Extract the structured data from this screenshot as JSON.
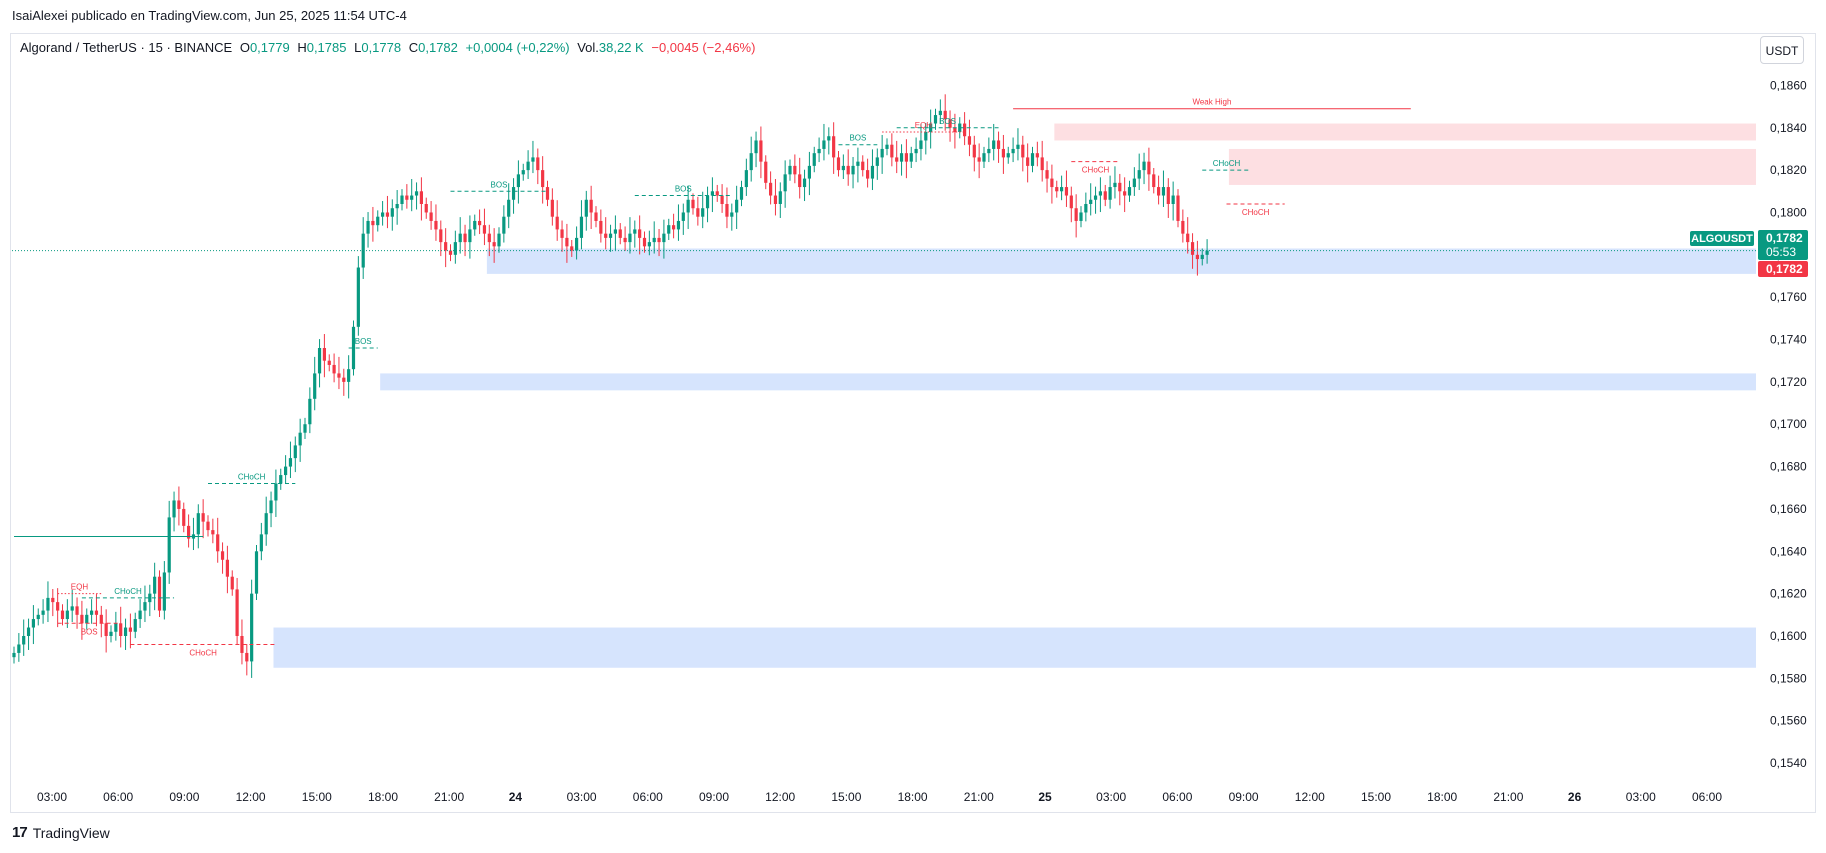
{
  "header": {
    "publisher": "IsaiAlexei publicado en TradingView.com, Jun 25, 2025 11:54 UTC-4"
  },
  "legend": {
    "symbol": "Algorand / TetherUS · 15 · BINANCE",
    "o_label": "O",
    "o_value": "0,1779",
    "h_label": "H",
    "h_value": "0,1785",
    "l_label": "L",
    "l_value": "0,1778",
    "c_label": "C",
    "c_value": "0,1782",
    "change": "+0,0004 (+0,22%)",
    "vol_label": "Vol.",
    "vol_value": "38,22 K",
    "vol_change": "−0,0045 (−2,46%)"
  },
  "currency_button": "USDT",
  "footer": {
    "brand": "TradingView"
  },
  "colors": {
    "up": "#089981",
    "down": "#f23645",
    "demand": "#d6e4fd",
    "supply": "#fddfe2"
  },
  "chart_data": {
    "type": "candlestick",
    "title": "",
    "ylim": [
      0.1532,
      0.1872
    ],
    "y_ticks": [
      "0,1540",
      "0,1560",
      "0,1580",
      "0,1600",
      "0,1620",
      "0,1640",
      "0,1660",
      "0,1680",
      "0,1700",
      "0,1720",
      "0,1740",
      "0,1760",
      "0,1780",
      "0,1800",
      "0,1820",
      "0,1840",
      "0,1860"
    ],
    "x_ticks": [
      "03:00",
      "06:00",
      "09:00",
      "12:00",
      "15:00",
      "18:00",
      "21:00",
      "24",
      "03:00",
      "06:00",
      "09:00",
      "12:00",
      "15:00",
      "18:00",
      "21:00",
      "25",
      "03:00",
      "06:00",
      "09:00",
      "12:00",
      "15:00",
      "18:00",
      "21:00",
      "26",
      "03:00",
      "06:00"
    ],
    "bold_ticks": [
      "24",
      "25",
      "26"
    ],
    "last_price": {
      "symbol": "ALGOUSDT",
      "price": "0,1782",
      "countdown": "05:53"
    },
    "series_close": [
      0.1592,
      0.1596,
      0.16,
      0.1604,
      0.1608,
      0.161,
      0.1612,
      0.1618,
      0.1616,
      0.1612,
      0.1608,
      0.1612,
      0.1614,
      0.161,
      0.1606,
      0.161,
      0.1612,
      0.161,
      0.1606,
      0.16,
      0.1602,
      0.1606,
      0.16,
      0.1604,
      0.1602,
      0.1608,
      0.1612,
      0.1616,
      0.162,
      0.1628,
      0.1612,
      0.163,
      0.1656,
      0.1664,
      0.166,
      0.1652,
      0.1646,
      0.1648,
      0.1658,
      0.1654,
      0.165,
      0.1648,
      0.164,
      0.1636,
      0.1628,
      0.1622,
      0.16,
      0.1592,
      0.1588,
      0.162,
      0.164,
      0.1648,
      0.1658,
      0.1664,
      0.1672,
      0.1676,
      0.168,
      0.1684,
      0.169,
      0.1696,
      0.17,
      0.1712,
      0.1724,
      0.1736,
      0.173,
      0.1728,
      0.1724,
      0.1722,
      0.172,
      0.1726,
      0.1746,
      0.1774,
      0.179,
      0.1796,
      0.1794,
      0.1798,
      0.18,
      0.1798,
      0.1802,
      0.1804,
      0.1808,
      0.1806,
      0.1808,
      0.181,
      0.1804,
      0.18,
      0.1796,
      0.1792,
      0.1786,
      0.1782,
      0.178,
      0.1786,
      0.179,
      0.1786,
      0.1792,
      0.1796,
      0.1794,
      0.179,
      0.1786,
      0.1784,
      0.179,
      0.1798,
      0.1806,
      0.1812,
      0.1818,
      0.182,
      0.1824,
      0.1826,
      0.182,
      0.1812,
      0.1806,
      0.1798,
      0.1792,
      0.1788,
      0.1784,
      0.1782,
      0.1788,
      0.1798,
      0.1806,
      0.18,
      0.1796,
      0.179,
      0.1788,
      0.179,
      0.1792,
      0.1788,
      0.1786,
      0.179,
      0.1792,
      0.1788,
      0.1784,
      0.1786,
      0.1788,
      0.1786,
      0.179,
      0.1794,
      0.1792,
      0.1796,
      0.18,
      0.1806,
      0.1802,
      0.1798,
      0.1802,
      0.1808,
      0.181,
      0.1808,
      0.1804,
      0.1798,
      0.18,
      0.1806,
      0.1812,
      0.182,
      0.1828,
      0.1834,
      0.1824,
      0.1814,
      0.1808,
      0.1804,
      0.181,
      0.1818,
      0.1822,
      0.1818,
      0.1812,
      0.1816,
      0.1822,
      0.1828,
      0.183,
      0.1834,
      0.1836,
      0.1826,
      0.182,
      0.1822,
      0.1818,
      0.1822,
      0.1824,
      0.182,
      0.1816,
      0.1822,
      0.1826,
      0.183,
      0.1832,
      0.1826,
      0.1824,
      0.1828,
      0.1824,
      0.1828,
      0.183,
      0.1834,
      0.1838,
      0.1842,
      0.1846,
      0.1848,
      0.1844,
      0.184,
      0.1838,
      0.1842,
      0.1836,
      0.1832,
      0.1826,
      0.1824,
      0.1828,
      0.183,
      0.1834,
      0.183,
      0.1826,
      0.1828,
      0.183,
      0.1832,
      0.1826,
      0.1822,
      0.1828,
      0.1826,
      0.182,
      0.1816,
      0.1812,
      0.181,
      0.1812,
      0.1808,
      0.1802,
      0.1796,
      0.18,
      0.1804,
      0.1806,
      0.1808,
      0.181,
      0.1806,
      0.1812,
      0.1814,
      0.181,
      0.1808,
      0.1812,
      0.1816,
      0.182,
      0.1824,
      0.1818,
      0.1812,
      0.1808,
      0.1812,
      0.1804,
      0.1808,
      0.1796,
      0.179,
      0.1786,
      0.178,
      0.1778,
      0.178,
      0.1782
    ],
    "zones": [
      {
        "type": "demand",
        "from_index": 98,
        "to": "right",
        "top": 0.1783,
        "bottom": 0.1771
      },
      {
        "type": "demand",
        "from_index": 76,
        "to": "right",
        "top": 0.1724,
        "bottom": 0.1716
      },
      {
        "type": "demand",
        "from_index": 54,
        "to": "right",
        "top": 0.1604,
        "bottom": 0.1585
      },
      {
        "type": "supply",
        "from_index": 215,
        "to": "right",
        "top": 0.1842,
        "bottom": 0.1834
      },
      {
        "type": "supply",
        "from_index": 251,
        "to": "right",
        "top": 0.183,
        "bottom": 0.1813
      }
    ],
    "structure": [
      {
        "label": "EQH",
        "color": "down",
        "style": "dotted",
        "x1": 9,
        "x2": 18,
        "y": 0.162,
        "label_pos": "above"
      },
      {
        "label": "CHoCH",
        "color": "up",
        "style": "dashed",
        "x1": 14,
        "x2": 33,
        "y": 0.1618,
        "label_pos": "above"
      },
      {
        "label": "BOS",
        "color": "down",
        "style": "dashed",
        "x1": 9,
        "x2": 22,
        "y": 0.1606,
        "label_pos": "below"
      },
      {
        "label": "CHoCH",
        "color": "down",
        "style": "dashed",
        "x1": 24,
        "x2": 54,
        "y": 0.1596,
        "label_pos": "below"
      },
      {
        "label": "CHoCH",
        "color": "up",
        "style": "dashed",
        "x1": 40,
        "x2": 58,
        "y": 0.1672,
        "label_pos": "above"
      },
      {
        "label": "BOS",
        "color": "up",
        "style": "dashed",
        "x1": 69,
        "x2": 75,
        "y": 0.1736,
        "label_pos": "above"
      },
      {
        "label": "BOS",
        "color": "up",
        "style": "dashed",
        "x1": 90,
        "x2": 110,
        "y": 0.181,
        "label_pos": "above"
      },
      {
        "label": "BOS",
        "color": "up",
        "style": "dashed",
        "x1": 128,
        "x2": 148,
        "y": 0.1808,
        "label_pos": "above"
      },
      {
        "label": "BOS",
        "color": "up",
        "style": "dashed",
        "x1": 170,
        "x2": 178,
        "y": 0.1832,
        "label_pos": "above"
      },
      {
        "label": "EQH",
        "color": "down",
        "style": "dotted",
        "x1": 179,
        "x2": 196,
        "y": 0.1838,
        "label_pos": "above"
      },
      {
        "label": "BOS",
        "color": "up",
        "style": "dashed",
        "x1": 182,
        "x2": 203,
        "y": 0.184,
        "label_pos": "above"
      },
      {
        "label": "CHoCH",
        "color": "down",
        "style": "dashed",
        "x1": 218,
        "x2": 228,
        "y": 0.1824,
        "label_pos": "below"
      },
      {
        "label": "CHoCH",
        "color": "up",
        "style": "dashed",
        "x1": 245,
        "x2": 255,
        "y": 0.182,
        "label_pos": "above"
      },
      {
        "label": "CHoCH",
        "color": "down",
        "style": "dashed",
        "x1": 250,
        "x2": 262,
        "y": 0.1804,
        "label_pos": "below"
      },
      {
        "label": "",
        "color": "up",
        "style": "solid",
        "x1": 0,
        "x2": 39,
        "y": 0.1647,
        "label_pos": "above"
      },
      {
        "label": "Weak High",
        "color": "down",
        "style": "solid",
        "x1": 206,
        "x2": 288,
        "y": 0.1849,
        "label_pos": "above"
      }
    ]
  }
}
